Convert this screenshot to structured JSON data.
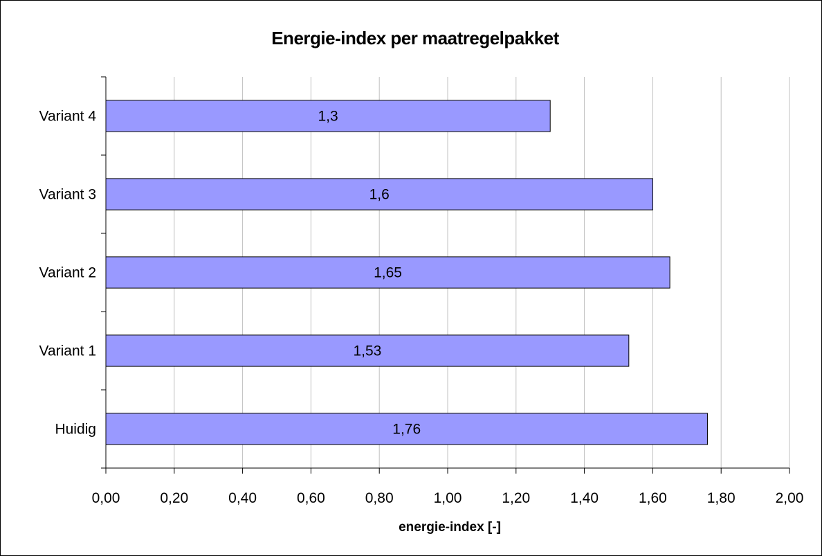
{
  "chart_data": {
    "type": "bar",
    "orientation": "horizontal",
    "title": "Energie-index per maatregelpakket",
    "xlabel": "energie-index [-]",
    "ylabel": "",
    "categories": [
      "Huidig",
      "Variant 1",
      "Variant 2",
      "Variant 3",
      "Variant 4"
    ],
    "values": [
      1.76,
      1.53,
      1.65,
      1.6,
      1.3
    ],
    "data_labels": [
      "1,76",
      "1,53",
      "1,65",
      "1,6",
      "1,3"
    ],
    "xlim": [
      0,
      2
    ],
    "x_ticks": [
      "0,00",
      "0,20",
      "0,40",
      "0,60",
      "0,80",
      "1,00",
      "1,20",
      "1,40",
      "1,60",
      "1,80",
      "2,00"
    ],
    "grid": "vertical",
    "legend": "none",
    "colors": {
      "bar": "#9999ff",
      "bar_stroke": "#000000",
      "grid": "#c0c0c0",
      "axis": "#000000"
    }
  }
}
